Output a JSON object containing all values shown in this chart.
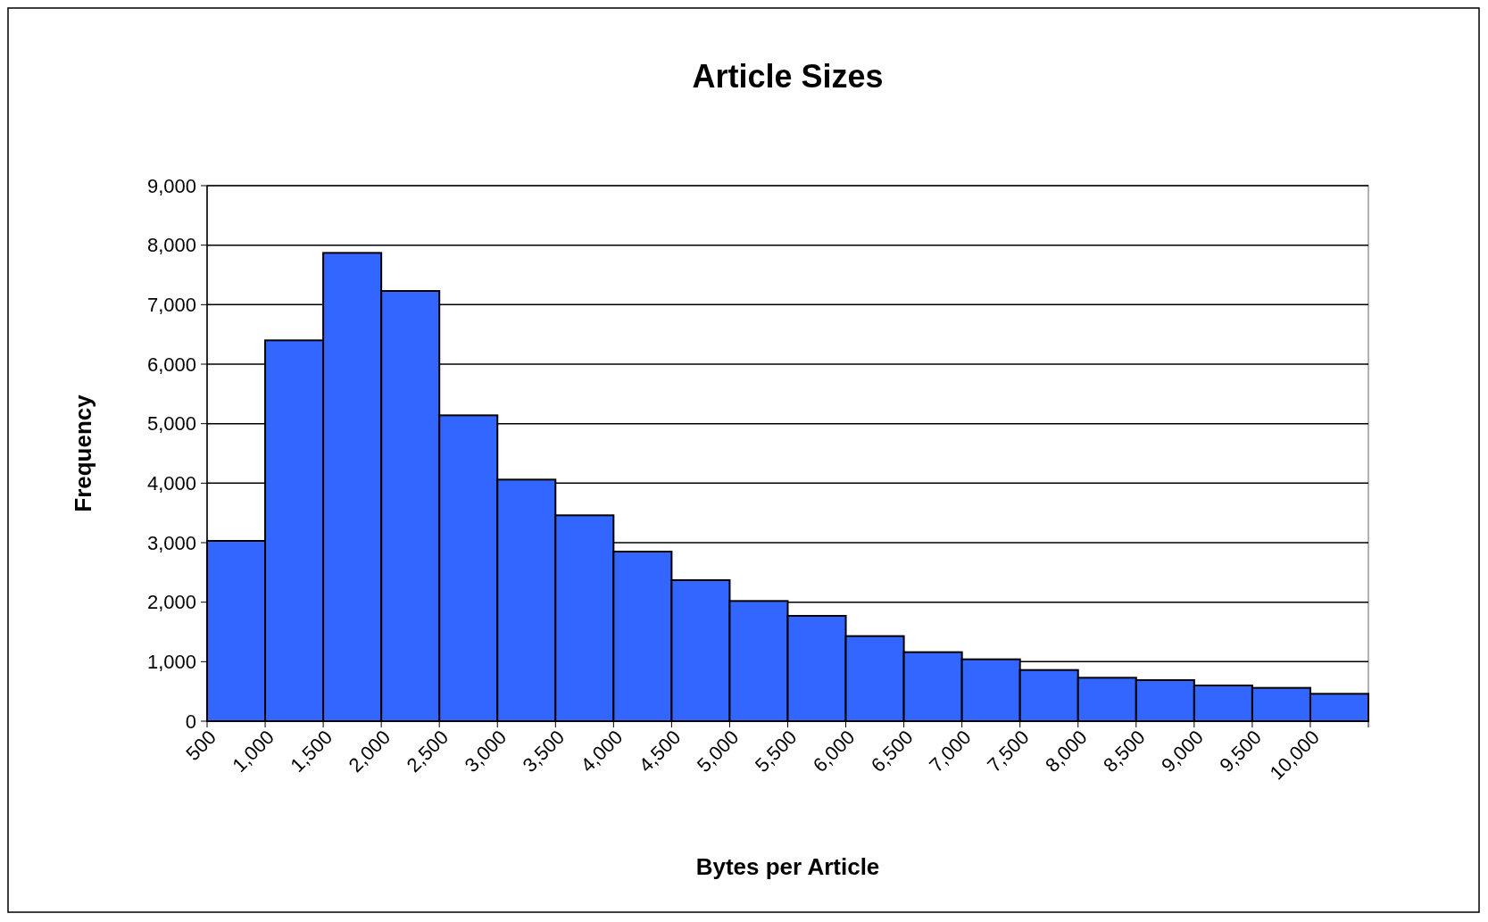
{
  "chart_data": {
    "type": "histogram",
    "title": "Article Sizes",
    "xlabel": "Bytes per Article",
    "ylabel": "Frequency",
    "bins": [
      500,
      1000,
      1500,
      2000,
      2500,
      3000,
      3500,
      4000,
      4500,
      5000,
      5500,
      6000,
      6500,
      7000,
      7500,
      8000,
      8500,
      9000,
      9500,
      10000,
      10500
    ],
    "values": [
      3030,
      6400,
      7870,
      7230,
      5140,
      4060,
      3460,
      2850,
      2370,
      2020,
      1770,
      1430,
      1160,
      1040,
      860,
      730,
      690,
      600,
      560,
      460
    ],
    "color": "#3366ff",
    "xlim": [
      500,
      10500
    ],
    "xticks": [
      500,
      {
        "value": 1000,
        "label": "1,000"
      },
      {
        "value": 1500,
        "label": "1,500"
      },
      {
        "value": 2000,
        "label": "2,000"
      },
      {
        "value": 2500,
        "label": "2,500"
      },
      {
        "value": 3000,
        "label": "3,000"
      },
      {
        "value": 3500,
        "label": "3,500"
      },
      {
        "value": 4000,
        "label": "4,000"
      },
      {
        "value": 4500,
        "label": "4,500"
      },
      {
        "value": 5000,
        "label": "5,000"
      },
      {
        "value": 5500,
        "label": "5,500"
      },
      {
        "value": 6000,
        "label": "6,000"
      },
      {
        "value": 6500,
        "label": "6,500"
      },
      {
        "value": 7000,
        "label": "7,000"
      },
      {
        "value": 7500,
        "label": "7,500"
      },
      {
        "value": 8000,
        "label": "8,000"
      },
      {
        "value": 8500,
        "label": "8,500"
      },
      {
        "value": 9000,
        "label": "9,000"
      },
      {
        "value": 9500,
        "label": "9,500"
      },
      {
        "value": 10000,
        "label": "10,000"
      }
    ],
    "ylim": [
      0,
      9000
    ],
    "yticks": [
      0,
      {
        "value": 1000,
        "label": "1,000"
      },
      {
        "value": 2000,
        "label": "2,000"
      },
      {
        "value": 3000,
        "label": "3,000"
      },
      {
        "value": 4000,
        "label": "4,000"
      },
      {
        "value": 5000,
        "label": "5,000"
      },
      {
        "value": 6000,
        "label": "6,000"
      },
      {
        "value": 7000,
        "label": "7,000"
      },
      {
        "value": 8000,
        "label": "8,000"
      },
      {
        "value": 9000,
        "label": "9,000"
      }
    ],
    "grid": "y"
  }
}
